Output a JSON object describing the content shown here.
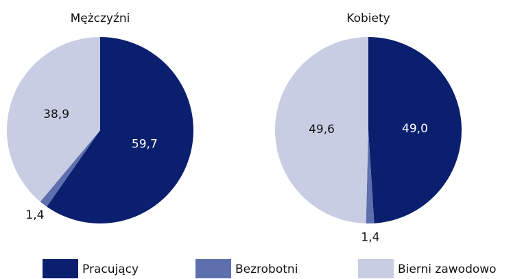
{
  "chart_data": [
    {
      "type": "pie",
      "title": "Mężczyźni",
      "values": [
        59.7,
        1.4,
        38.9
      ],
      "value_labels": [
        "59,7",
        "1,4",
        "38,9"
      ]
    },
    {
      "type": "pie",
      "title": "Kobiety",
      "values": [
        49.0,
        1.4,
        49.6
      ],
      "value_labels": [
        "49,0",
        "1,4",
        "49,6"
      ]
    }
  ],
  "legend": {
    "labels": [
      "Pracujący",
      "Bezrobotni",
      "Bierni zawodowo"
    ],
    "colors": [
      "#0b1f6f",
      "#5d70ad",
      "#c9cde3"
    ]
  }
}
